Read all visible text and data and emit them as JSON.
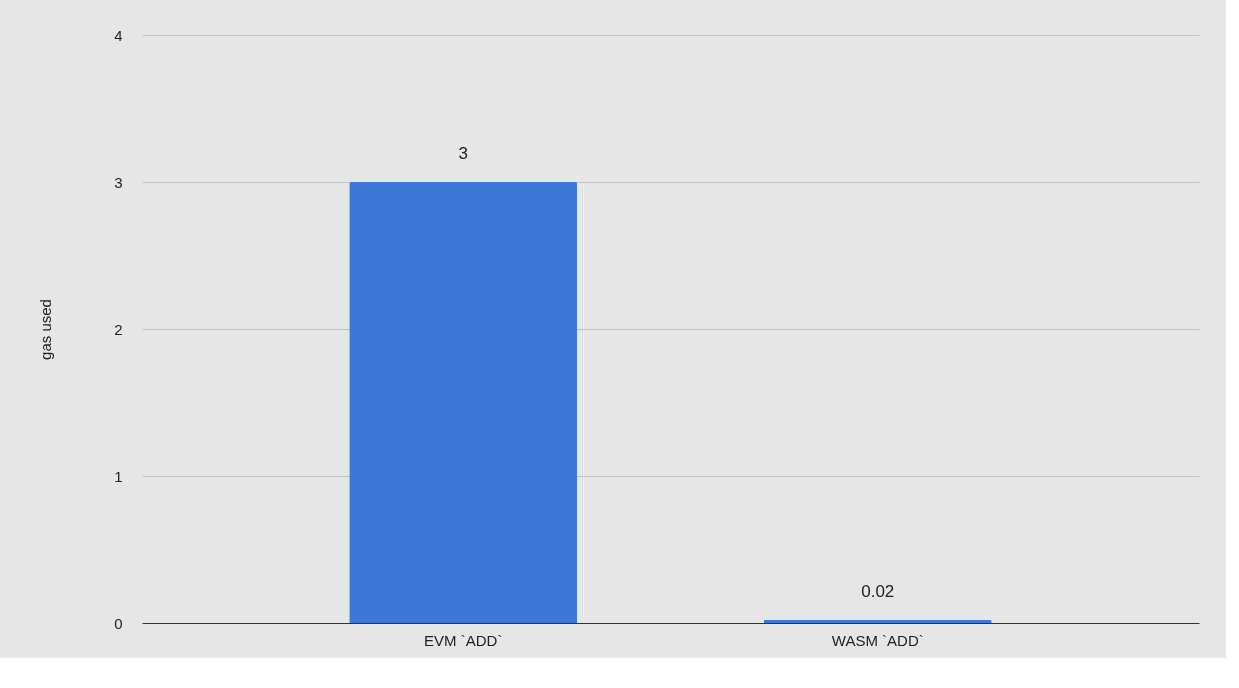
{
  "chart_data": {
    "type": "bar",
    "ylabel": "gas used",
    "categories": [
      "EVM `ADD`",
      "WASM `ADD`"
    ],
    "values": [
      3,
      0.02
    ],
    "color": "#3c78d8",
    "ylim": [
      0,
      4
    ],
    "yticks": [
      0,
      1,
      2,
      3,
      4
    ],
    "grid": "y",
    "data_labels": true
  }
}
